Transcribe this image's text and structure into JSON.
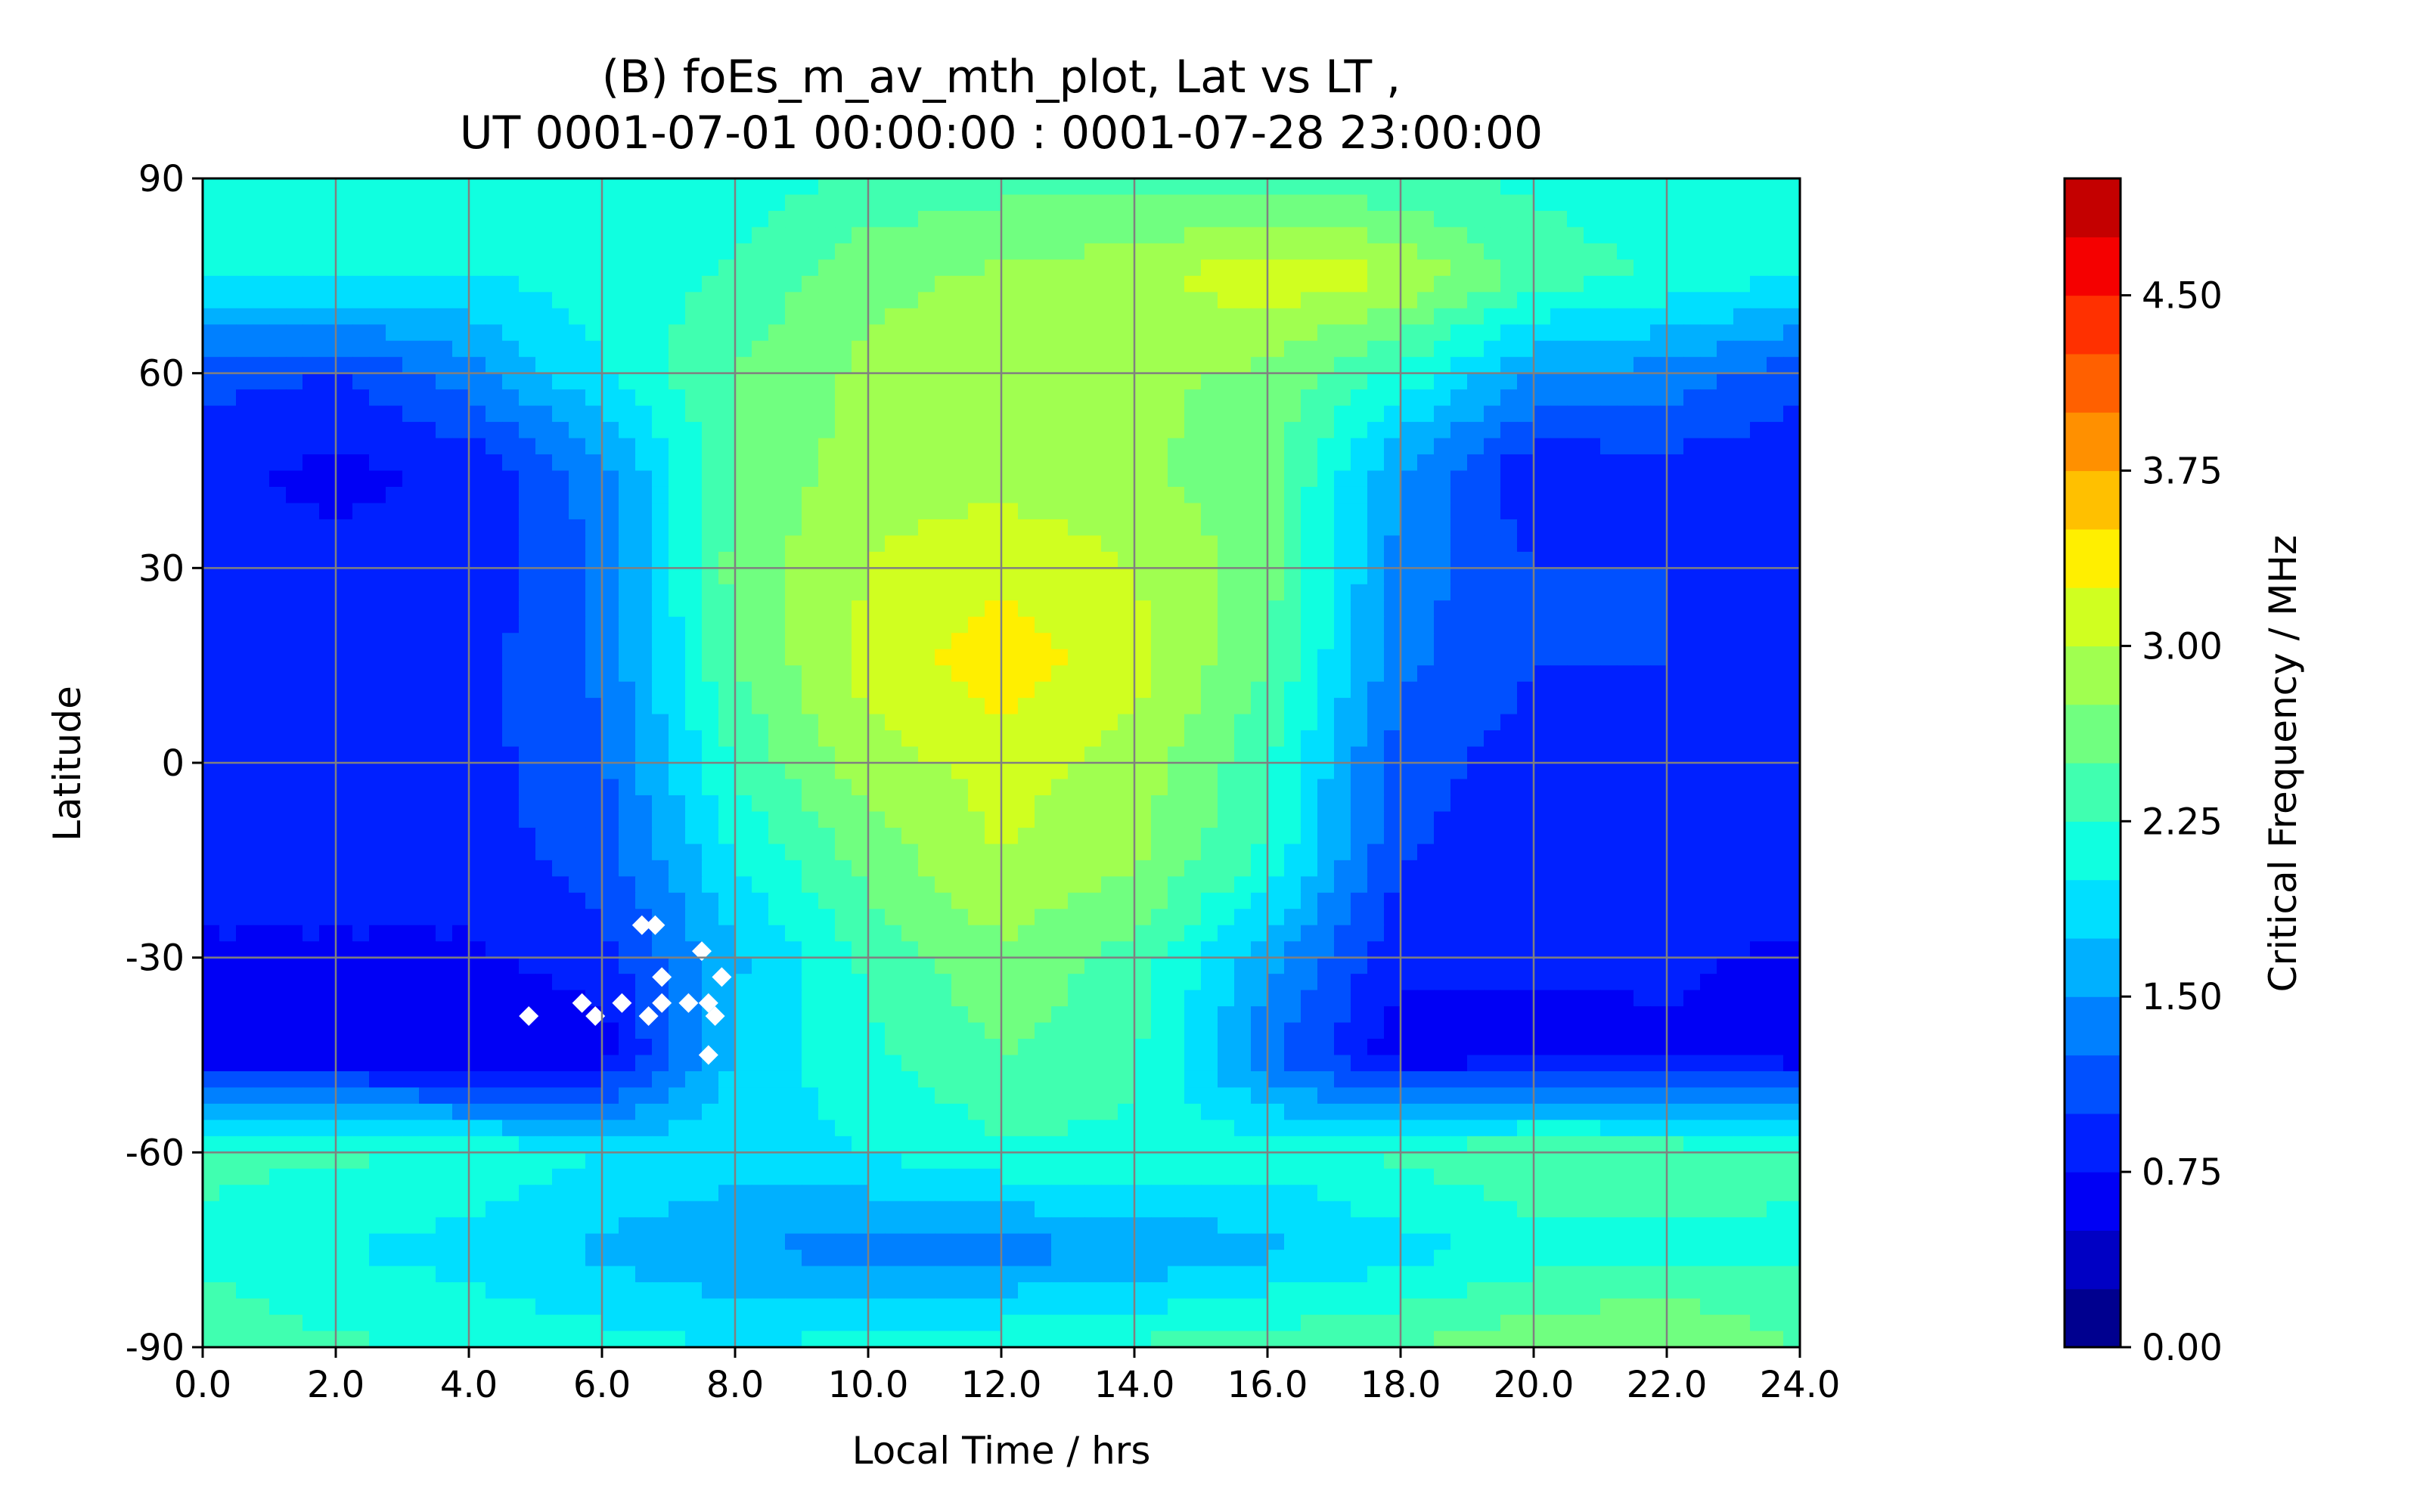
{
  "chart_data": {
    "type": "heatmap",
    "plot_type": "filled-contour",
    "title_lines": [
      "(B) foEs_m_av_mth_plot, Lat vs LT ,",
      "UT 0001-07-01 00:00:00 : 0001-07-28 23:00:00"
    ],
    "xlabel": "Local Time / hrs",
    "ylabel": "Latitude",
    "xlim": [
      0,
      24
    ],
    "ylim": [
      -90,
      90
    ],
    "x_ticks": [
      0,
      2,
      4,
      6,
      8,
      10,
      12,
      14,
      16,
      18,
      20,
      22,
      24
    ],
    "x_tick_labels": [
      "0.0",
      "2.0",
      "4.0",
      "6.0",
      "8.0",
      "10.0",
      "12.0",
      "14.0",
      "16.0",
      "18.0",
      "20.0",
      "22.0",
      "24.0"
    ],
    "y_ticks": [
      -90,
      -60,
      -30,
      0,
      30,
      60,
      90
    ],
    "y_tick_labels": [
      "-90",
      "-60",
      "-30",
      "0",
      "30",
      "60",
      "90"
    ],
    "grid": true,
    "colorbar": {
      "label": "Critical Frequency / MHz",
      "range": [
        0,
        5
      ],
      "ticks": [
        0,
        0.75,
        1.5,
        2.25,
        3.0,
        3.75,
        4.5
      ],
      "tick_labels": [
        "0.00",
        "0.75",
        "1.50",
        "2.25",
        "3.00",
        "3.75",
        "4.50"
      ],
      "colormap": "jet",
      "levels": [
        0,
        0.25,
        0.5,
        0.75,
        1.0,
        1.25,
        1.5,
        1.75,
        2.0,
        2.25,
        2.5,
        2.75,
        3.0,
        3.25,
        3.5,
        3.75,
        4.0,
        4.25,
        4.5,
        4.75,
        5.0
      ],
      "band_colors": [
        "#00008f",
        "#0000c4",
        "#0000f5",
        "#0020ff",
        "#0050ff",
        "#0080ff",
        "#00b0ff",
        "#00dfff",
        "#10ffe0",
        "#40ffb0",
        "#70ff80",
        "#a0ff50",
        "#d0ff20",
        "#ffef00",
        "#ffc000",
        "#ff9000",
        "#ff6000",
        "#ff3000",
        "#f50000",
        "#c40000"
      ]
    },
    "data_grid": {
      "lat": [
        -90,
        -75,
        -60,
        -45,
        -30,
        -15,
        0,
        15,
        30,
        45,
        60,
        75,
        90
      ],
      "lt": [
        0,
        2,
        4,
        6,
        8,
        10,
        12,
        14,
        16,
        18,
        20,
        22,
        24
      ],
      "values": [
        [
          2.4,
          2.3,
          2.2,
          2.1,
          2.0,
          2.1,
          2.2,
          2.3,
          2.4,
          2.5,
          2.7,
          2.8,
          2.5
        ],
        [
          2.2,
          2.0,
          1.9,
          1.7,
          1.5,
          1.4,
          1.4,
          1.5,
          1.7,
          1.9,
          2.1,
          2.2,
          2.2
        ],
        [
          2.3,
          2.3,
          2.2,
          2.0,
          1.9,
          2.0,
          2.2,
          2.2,
          2.1,
          2.3,
          2.5,
          2.4,
          2.3
        ],
        [
          0.6,
          0.6,
          0.5,
          0.6,
          1.8,
          2.2,
          2.5,
          2.3,
          1.3,
          0.6,
          0.6,
          0.7,
          0.6
        ],
        [
          0.7,
          0.7,
          0.7,
          0.9,
          1.7,
          2.3,
          2.7,
          2.4,
          1.6,
          0.8,
          0.8,
          0.8,
          0.7
        ],
        [
          0.9,
          0.9,
          0.9,
          1.1,
          2.0,
          2.6,
          3.0,
          2.8,
          2.2,
          1.0,
          0.9,
          0.9,
          0.9
        ],
        [
          0.9,
          0.9,
          0.9,
          1.2,
          2.3,
          2.9,
          3.1,
          2.9,
          2.3,
          1.1,
          0.9,
          0.9,
          0.9
        ],
        [
          0.9,
          0.9,
          0.9,
          1.3,
          2.5,
          3.1,
          3.4,
          3.1,
          2.5,
          1.3,
          1.0,
          1.0,
          0.9
        ],
        [
          0.8,
          0.8,
          0.8,
          1.3,
          2.6,
          3.0,
          3.2,
          3.0,
          2.6,
          1.4,
          1.0,
          1.0,
          0.8
        ],
        [
          0.8,
          0.7,
          0.8,
          1.4,
          2.5,
          2.9,
          2.9,
          2.8,
          2.6,
          1.5,
          0.8,
          0.9,
          0.8
        ],
        [
          1.1,
          1.0,
          1.4,
          2.0,
          2.5,
          2.8,
          2.8,
          2.8,
          2.7,
          2.2,
          1.5,
          1.4,
          1.1
        ],
        [
          2.0,
          2.0,
          2.0,
          2.1,
          2.3,
          2.7,
          2.8,
          2.9,
          3.2,
          3.0,
          2.4,
          2.2,
          2.0
        ],
        [
          2.1,
          2.0,
          2.0,
          2.0,
          2.1,
          2.3,
          2.4,
          2.4,
          2.4,
          2.3,
          2.2,
          2.1,
          2.1
        ]
      ]
    },
    "missing_data_points": [
      {
        "lt": 4.9,
        "lat": -39
      },
      {
        "lt": 5.7,
        "lat": -37
      },
      {
        "lt": 5.9,
        "lat": -39
      },
      {
        "lt": 6.3,
        "lat": -37
      },
      {
        "lt": 6.6,
        "lat": -25
      },
      {
        "lt": 6.8,
        "lat": -25
      },
      {
        "lt": 6.7,
        "lat": -39
      },
      {
        "lt": 6.9,
        "lat": -37
      },
      {
        "lt": 6.9,
        "lat": -33
      },
      {
        "lt": 7.3,
        "lat": -37
      },
      {
        "lt": 7.5,
        "lat": -29
      },
      {
        "lt": 7.6,
        "lat": -37
      },
      {
        "lt": 7.7,
        "lat": -39
      },
      {
        "lt": 7.8,
        "lat": -33
      },
      {
        "lt": 7.6,
        "lat": -45
      }
    ]
  }
}
